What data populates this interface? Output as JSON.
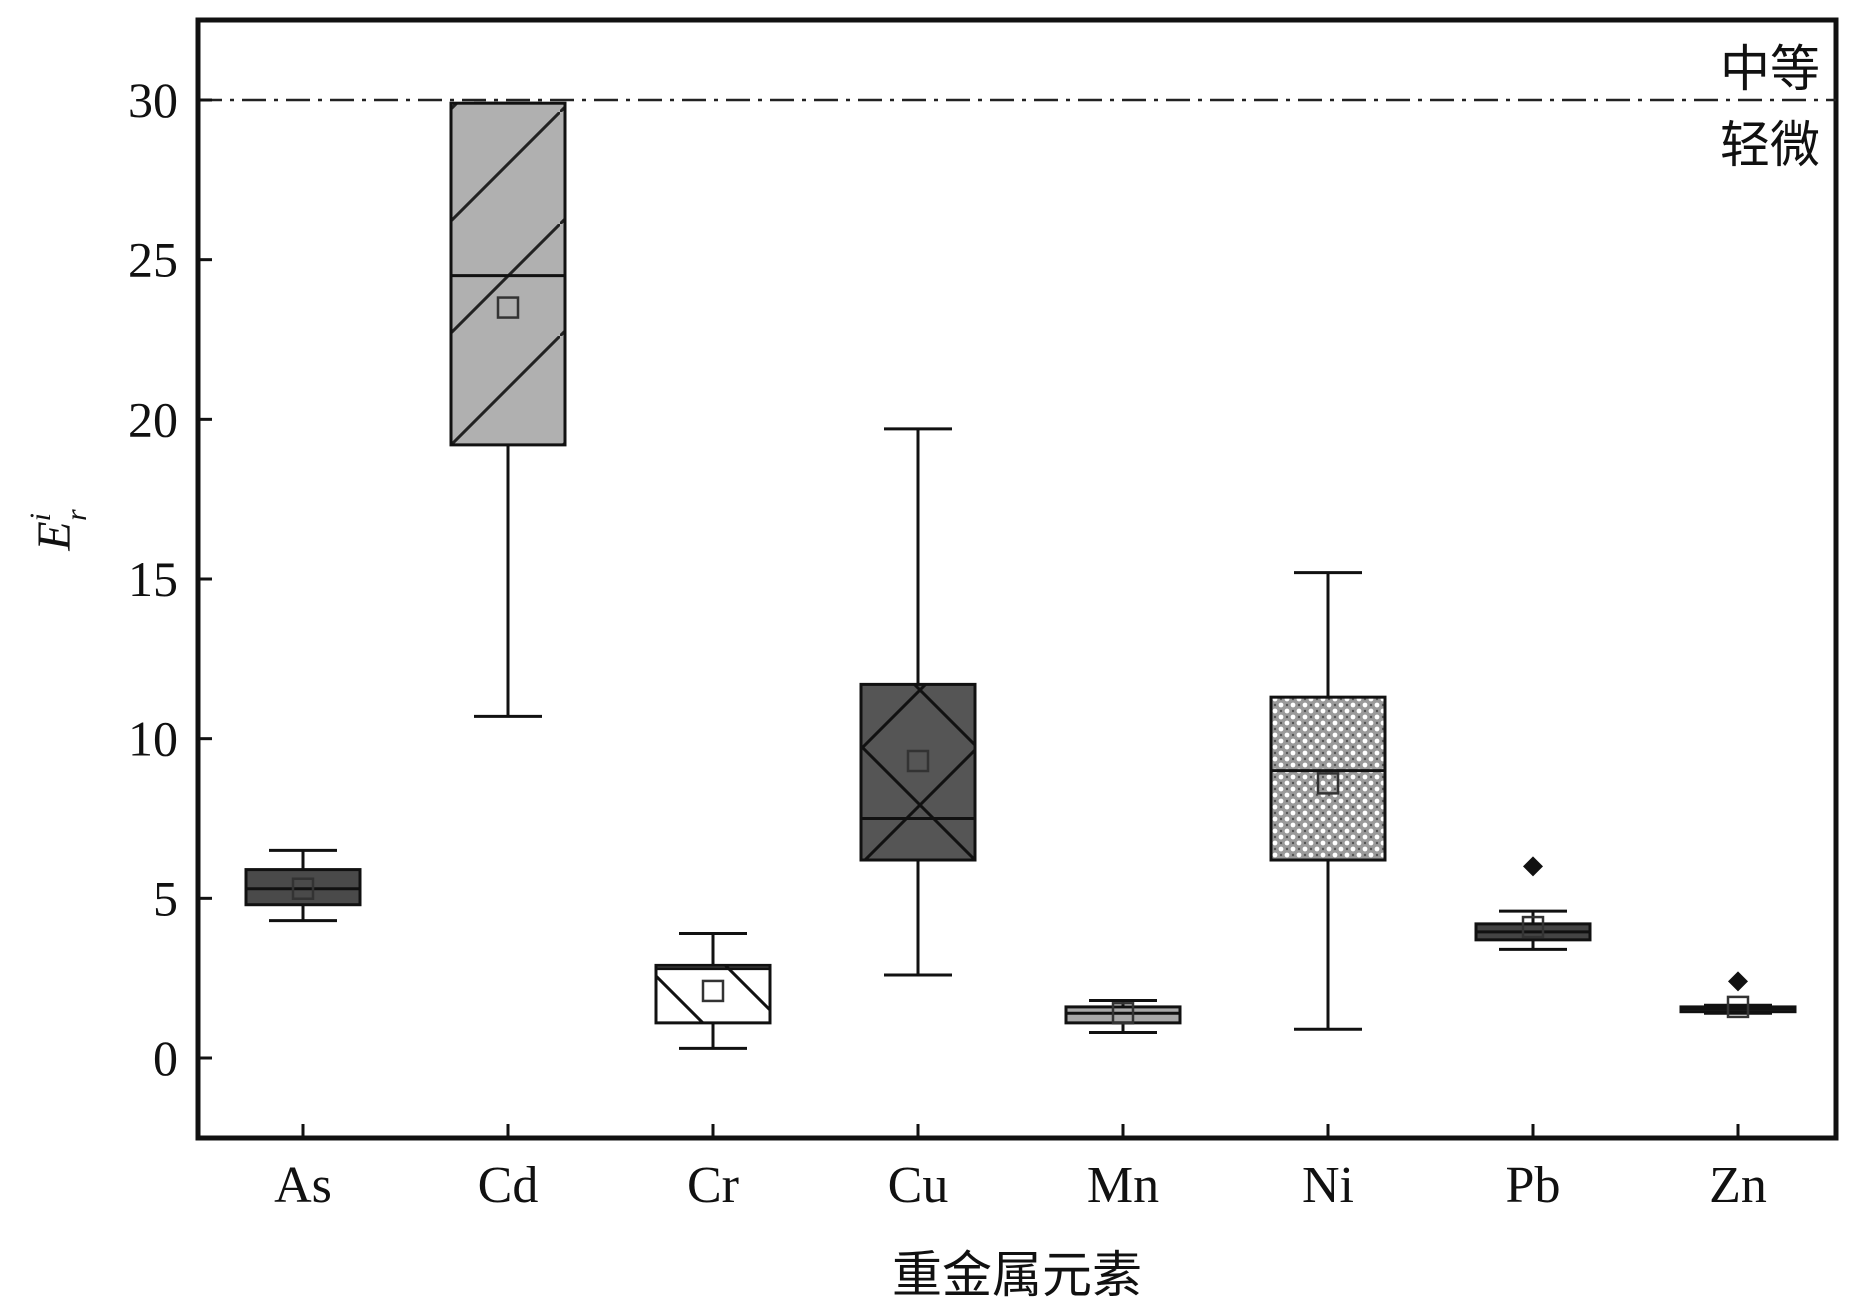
{
  "chart_data": {
    "type": "box",
    "xlabel": "重金属元素",
    "ylabel_main": "E",
    "ylabel_sup": "i",
    "ylabel_sub": "r",
    "ylim": [
      -2.5,
      32.5
    ],
    "yticks": [
      0,
      5,
      10,
      15,
      20,
      25,
      30
    ],
    "grid": false,
    "reference_line": {
      "y": 30,
      "label_above": "中等",
      "label_below": "轻微"
    },
    "categories": [
      "As",
      "Cd",
      "Cr",
      "Cu",
      "Mn",
      "Ni",
      "Pb",
      "Zn"
    ],
    "boxes": [
      {
        "name": "As",
        "min": 4.3,
        "q1": 4.8,
        "median": 5.3,
        "q3": 5.9,
        "max": 6.5,
        "mean": 5.3,
        "outliers": [],
        "fill": "#4a4a4a",
        "pattern": "solid"
      },
      {
        "name": "Cd",
        "min": 10.7,
        "q1": 19.2,
        "median": 24.5,
        "q3": 29.9,
        "max": 29.9,
        "mean": 23.5,
        "outliers": [],
        "fill": "#b0b0b0",
        "pattern": "diagonal"
      },
      {
        "name": "Cr",
        "min": 0.3,
        "q1": 1.1,
        "median": 2.8,
        "q3": 2.9,
        "max": 3.9,
        "mean": 2.1,
        "outliers": [],
        "fill": "#ffffff",
        "pattern": "backslash"
      },
      {
        "name": "Cu",
        "min": 2.6,
        "q1": 6.2,
        "median": 7.5,
        "q3": 11.7,
        "max": 19.7,
        "mean": 9.3,
        "outliers": [],
        "fill": "#555555",
        "pattern": "crosshatch"
      },
      {
        "name": "Mn",
        "min": 0.8,
        "q1": 1.1,
        "median": 1.4,
        "q3": 1.6,
        "max": 1.8,
        "mean": 1.4,
        "outliers": [],
        "fill": "#a8a8a8",
        "pattern": "solid"
      },
      {
        "name": "Ni",
        "min": 0.9,
        "q1": 6.2,
        "median": 9.0,
        "q3": 11.3,
        "max": 15.2,
        "mean": 8.6,
        "outliers": [],
        "fill": "#a0a0a0",
        "pattern": "dots"
      },
      {
        "name": "Pb",
        "min": 3.4,
        "q1": 3.7,
        "median": 3.95,
        "q3": 4.2,
        "max": 4.6,
        "mean": 4.1,
        "outliers": [
          6.0
        ],
        "fill": "#444444",
        "pattern": "solid"
      },
      {
        "name": "Zn",
        "min": 1.4,
        "q1": 1.45,
        "median": 1.55,
        "q3": 1.6,
        "max": 1.65,
        "mean": 1.6,
        "outliers": [
          2.4
        ],
        "fill": "#333333",
        "pattern": "solid"
      }
    ]
  }
}
